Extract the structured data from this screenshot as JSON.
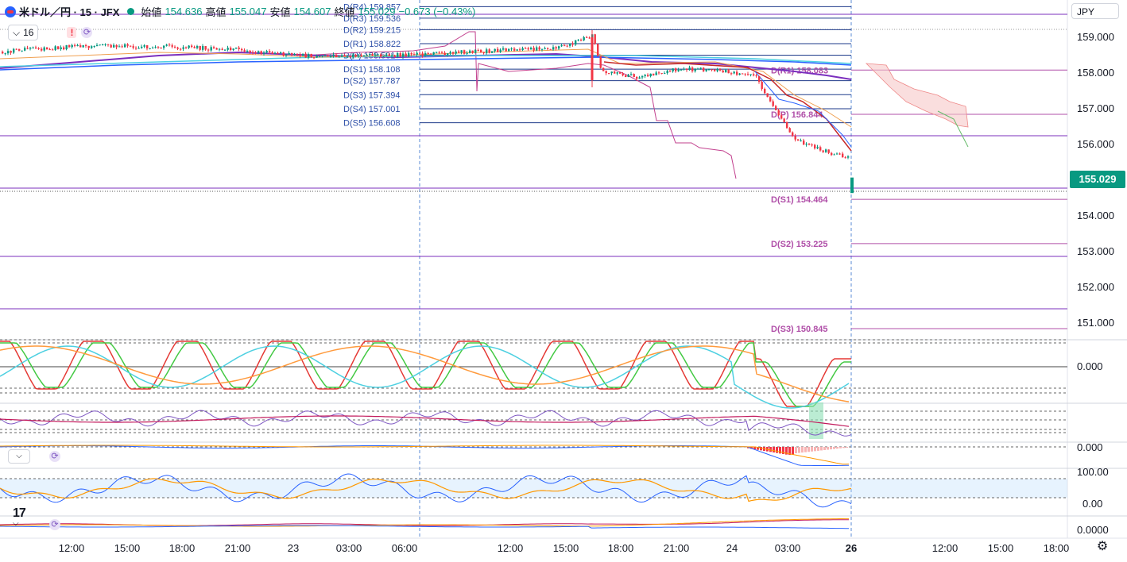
{
  "header": {
    "symbol": "米ドル／円 · 15 · JFX",
    "open_label": "始値",
    "open_value": "154.636",
    "high_label": "高値",
    "high_value": "155.047",
    "low_label": "安値",
    "low_value": "154.607",
    "close_label": "終値",
    "close_value": "155.029",
    "change": "−0.673 (−0.43%)",
    "indicator_count": "16",
    "alert_badge": "!",
    "currency": "JPY"
  },
  "colors": {
    "up": "#089981",
    "down": "#f23645",
    "pivot_blue": "#1e3a8a",
    "pivot_purple": "#b04fa8",
    "ma_purple": "#7b2fbe",
    "ma_blue": "#2962ff",
    "ma_cyan": "#4dd0e1",
    "ma_orange": "#f0a050",
    "stoch_red": "#e53935",
    "stoch_green": "#43c943",
    "stoch_cyan": "#4dd0e1",
    "stoch_orange": "#ff9a3c"
  },
  "chart_data": {
    "type": "candlestick",
    "price_axis": {
      "ticks": [
        "159.000",
        "158.000",
        "157.000",
        "156.000",
        "155.000",
        "154.000",
        "153.000",
        "152.000",
        "151.000"
      ],
      "range": [
        150.5,
        159.6
      ]
    },
    "last_price": "155.029",
    "time_axis": [
      "12:00",
      "15:00",
      "18:00",
      "21:00",
      "23",
      "03:00",
      "06:00",
      "12:00",
      "15:00",
      "18:00",
      "21:00",
      "24",
      "03:00",
      "26",
      "12:00",
      "15:00",
      "18:00"
    ],
    "pivots_left": [
      {
        "label": "D(R4) 159.857",
        "value": 159.857
      },
      {
        "label": "D(R3) 159.536",
        "value": 159.536
      },
      {
        "label": "D(R2) 159.215",
        "value": 159.215
      },
      {
        "label": "D(R1) 158.822",
        "value": 158.822
      },
      {
        "label": "D(P) 158.501",
        "value": 158.501
      },
      {
        "label": "D(S1) 158.108",
        "value": 158.108
      },
      {
        "label": "D(S2) 157.787",
        "value": 157.787
      },
      {
        "label": "D(S3) 157.394",
        "value": 157.394
      },
      {
        "label": "D(S4) 157.001",
        "value": 157.001
      },
      {
        "label": "D(S5) 156.608",
        "value": 156.608
      }
    ],
    "pivots_right": [
      {
        "label": "D(R1) 158.083",
        "value": 158.083
      },
      {
        "label": "D(P) 156.844",
        "value": 156.844
      },
      {
        "label": "D(S1) 154.464",
        "value": 154.464
      },
      {
        "label": "D(S2) 153.225",
        "value": 153.225
      },
      {
        "label": "D(S3) 150.845",
        "value": 150.845
      }
    ],
    "osc1_ticks": [
      "0.000"
    ],
    "osc2_ticks": [
      "0.000"
    ],
    "osc3_ticks": [
      "100.00",
      "0.00"
    ],
    "osc4_ticks": [
      "0.0000"
    ]
  }
}
